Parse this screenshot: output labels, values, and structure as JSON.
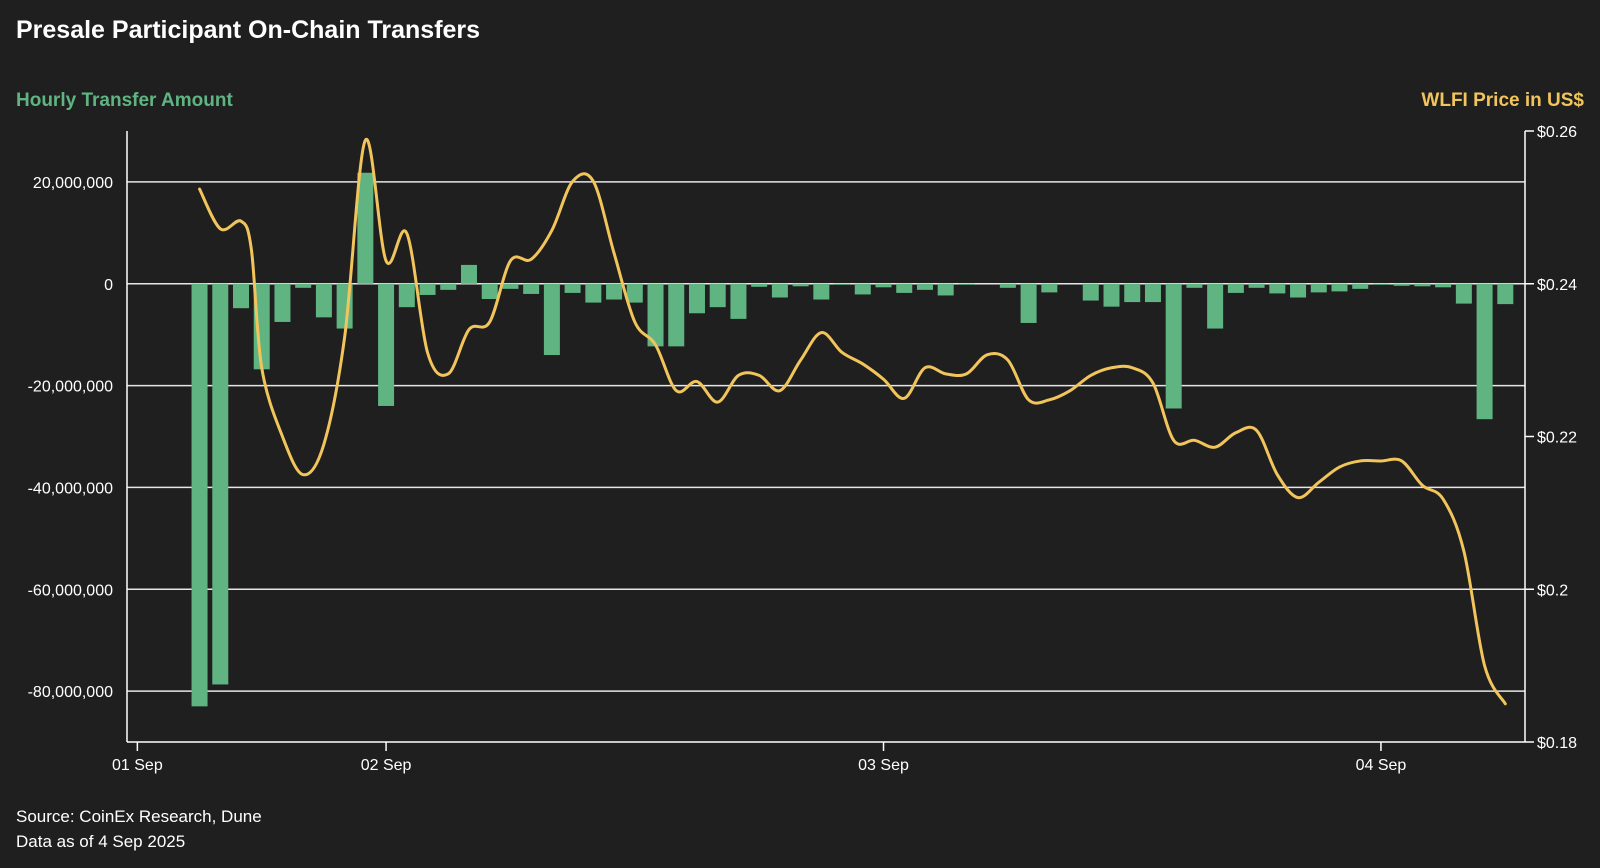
{
  "colors": {
    "background": "#1f1f1f",
    "bars": "#5fb482",
    "line": "#f2c55c",
    "grid": "#e6e6e6",
    "axis": "#ffffff"
  },
  "chart_data": {
    "type": "bar",
    "title": "Presale Participant On-Chain Transfers",
    "ylabel": "Hourly Transfer Amount",
    "y2label": "WLFI Price in US$",
    "ylim": [
      -90000000,
      30000000
    ],
    "y_ticks": [
      20000000,
      0,
      -20000000,
      -40000000,
      -60000000,
      -80000000
    ],
    "y_tick_labels": [
      "20,000,000",
      "0",
      "-20,000,000",
      "-40,000,000",
      "-60,000,000",
      "-80,000,000"
    ],
    "y2lim": [
      0.18,
      0.26
    ],
    "y2_ticks": [
      0.26,
      0.24,
      0.22,
      0.2,
      0.18
    ],
    "y2_tick_labels": [
      "$0.26",
      "$0.24",
      "$0.22",
      "$0.2",
      "$0.18"
    ],
    "x_ticks": [
      {
        "label": "01 Sep",
        "hour": 0
      },
      {
        "label": "02 Sep",
        "hour": 24
      },
      {
        "label": "03 Sep",
        "hour": 72
      },
      {
        "label": "04 Sep",
        "hour": 120
      }
    ],
    "xlim_hours": [
      -1,
      133.9
    ],
    "series": [
      {
        "name": "Hourly Transfer Amount",
        "kind": "bar",
        "axis": "left",
        "points": [
          [
            6,
            -83000000
          ],
          [
            8,
            -78700000
          ],
          [
            10,
            -4800000
          ],
          [
            12,
            -16800000
          ],
          [
            14,
            -7500000
          ],
          [
            16,
            -800000
          ],
          [
            18,
            -6600000
          ],
          [
            20,
            -8800000
          ],
          [
            22,
            21800000
          ],
          [
            24,
            -24000000
          ],
          [
            26,
            -4600000
          ],
          [
            28,
            -2200000
          ],
          [
            30,
            -1200000
          ],
          [
            32,
            3700000
          ],
          [
            34,
            -3000000
          ],
          [
            36,
            -1000000
          ],
          [
            38,
            -2000000
          ],
          [
            40,
            -14000000
          ],
          [
            42,
            -1800000
          ],
          [
            44,
            -3700000
          ],
          [
            46,
            -3100000
          ],
          [
            48,
            -3700000
          ],
          [
            50,
            -12300000
          ],
          [
            52,
            -12300000
          ],
          [
            54,
            -5800000
          ],
          [
            56,
            -4600000
          ],
          [
            58,
            -6900000
          ],
          [
            60,
            -600000
          ],
          [
            62,
            -2700000
          ],
          [
            64,
            -500000
          ],
          [
            66,
            -3100000
          ],
          [
            68,
            -200000
          ],
          [
            70,
            -2100000
          ],
          [
            72,
            -700000
          ],
          [
            74,
            -1800000
          ],
          [
            76,
            -1200000
          ],
          [
            78,
            -2300000
          ],
          [
            80,
            -200000
          ],
          [
            84,
            -800000
          ],
          [
            86,
            -7700000
          ],
          [
            88,
            -1700000
          ],
          [
            92,
            -3300000
          ],
          [
            94,
            -4500000
          ],
          [
            96,
            -3600000
          ],
          [
            98,
            -3600000
          ],
          [
            100,
            -24500000
          ],
          [
            102,
            -800000
          ],
          [
            104,
            -8800000
          ],
          [
            106,
            -1800000
          ],
          [
            108,
            -800000
          ],
          [
            110,
            -1900000
          ],
          [
            112,
            -2700000
          ],
          [
            114,
            -1700000
          ],
          [
            116,
            -1500000
          ],
          [
            118,
            -1000000
          ],
          [
            120,
            -200000
          ],
          [
            122,
            -400000
          ],
          [
            124,
            -500000
          ],
          [
            126,
            -700000
          ],
          [
            128,
            -3900000
          ],
          [
            130,
            -26600000
          ],
          [
            132,
            -4000000
          ]
        ]
      },
      {
        "name": "WLFI Price in US$",
        "kind": "line",
        "axis": "right",
        "points": [
          [
            6,
            0.2524
          ],
          [
            8,
            0.2472
          ],
          [
            10,
            0.2482
          ],
          [
            11,
            0.2445
          ],
          [
            12,
            0.229
          ],
          [
            14,
            0.22
          ],
          [
            16,
            0.215
          ],
          [
            18,
            0.219
          ],
          [
            20,
            0.233
          ],
          [
            22,
            0.2588
          ],
          [
            24,
            0.243
          ],
          [
            26,
            0.2466
          ],
          [
            28,
            0.231
          ],
          [
            30,
            0.2282
          ],
          [
            32,
            0.234
          ],
          [
            34,
            0.235
          ],
          [
            36,
            0.243
          ],
          [
            38,
            0.2432
          ],
          [
            40,
            0.247
          ],
          [
            42,
            0.2534
          ],
          [
            44,
            0.2534
          ],
          [
            46,
            0.244
          ],
          [
            48,
            0.235
          ],
          [
            50,
            0.232
          ],
          [
            52,
            0.226
          ],
          [
            54,
            0.2272
          ],
          [
            56,
            0.2245
          ],
          [
            58,
            0.228
          ],
          [
            60,
            0.228
          ],
          [
            62,
            0.226
          ],
          [
            64,
            0.23
          ],
          [
            66,
            0.2336
          ],
          [
            68,
            0.231
          ],
          [
            70,
            0.2295
          ],
          [
            72,
            0.2275
          ],
          [
            74,
            0.225
          ],
          [
            76,
            0.229
          ],
          [
            78,
            0.2282
          ],
          [
            80,
            0.2282
          ],
          [
            82,
            0.2307
          ],
          [
            84,
            0.23
          ],
          [
            86,
            0.2248
          ],
          [
            88,
            0.2248
          ],
          [
            90,
            0.226
          ],
          [
            92,
            0.228
          ],
          [
            94,
            0.229
          ],
          [
            96,
            0.229
          ],
          [
            98,
            0.227
          ],
          [
            100,
            0.2195
          ],
          [
            102,
            0.2195
          ],
          [
            104,
            0.2186
          ],
          [
            106,
            0.2205
          ],
          [
            108,
            0.2208
          ],
          [
            110,
            0.215
          ],
          [
            112,
            0.212
          ],
          [
            114,
            0.214
          ],
          [
            116,
            0.216
          ],
          [
            118,
            0.2168
          ],
          [
            120,
            0.2168
          ],
          [
            122,
            0.2168
          ],
          [
            124,
            0.2136
          ],
          [
            126,
            0.2118
          ],
          [
            128,
            0.205
          ],
          [
            130,
            0.19
          ],
          [
            132,
            0.185
          ]
        ]
      }
    ]
  },
  "footer": {
    "source": "Source: CoinEx Research, Dune",
    "data_as_of": "Data as of 4 Sep 2025"
  }
}
